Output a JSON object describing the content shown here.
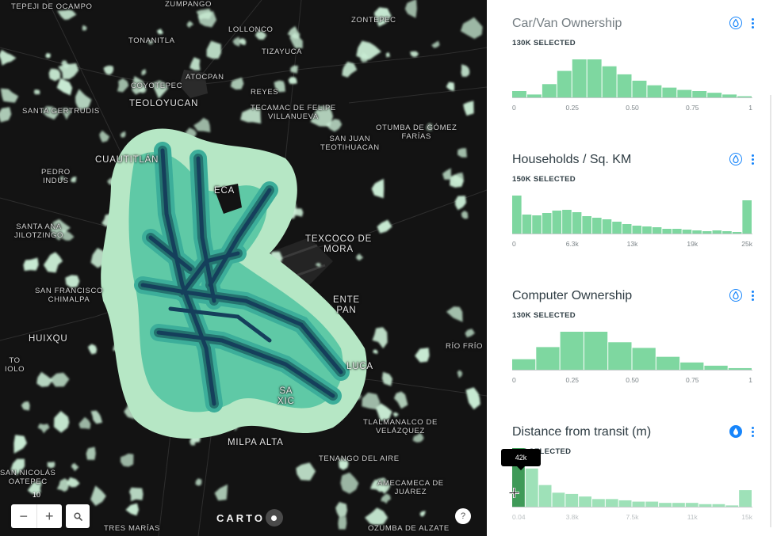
{
  "map": {
    "zoom_level": "10",
    "zoom_out_label": "−",
    "zoom_in_label": "+",
    "search_icon": "search-icon",
    "help_label": "?",
    "attribution": "CARTO",
    "places": [
      {
        "id": "tepeji",
        "text": "TEPEJI DE OCAMPO"
      },
      {
        "id": "zumpango",
        "text": "ZUMPANGO"
      },
      {
        "id": "tonanitla",
        "text": "TONANITLA"
      },
      {
        "id": "atocpan",
        "text": "ATOCPAN"
      },
      {
        "id": "zontepec",
        "text": "ZONTEPEC"
      },
      {
        "id": "lollonco",
        "text": "LOLLONCO"
      },
      {
        "id": "tizayuca",
        "text": "TIZAYUCA"
      },
      {
        "id": "coyotepec",
        "text": "COYOTEPEC"
      },
      {
        "id": "reyes",
        "text": "REYES"
      },
      {
        "id": "tecamac",
        "text": "TECAMAC DE FELIPE\nVILLANUEVA"
      },
      {
        "id": "teoloyucan",
        "text": "TEOLOYUCAN"
      },
      {
        "id": "gertrudis",
        "text": "SANTA GERTRUDIS"
      },
      {
        "id": "otumba",
        "text": "OTUMBA DE GÓMEZ\nFARÍAS"
      },
      {
        "id": "teotihuacan",
        "text": "SAN JUAN\nTEOTIHUACAN"
      },
      {
        "id": "cuautitlan",
        "text": "CUAUTITLÁN"
      },
      {
        "id": "pedro",
        "text": "PEDRO\nINDUS"
      },
      {
        "id": "ecatepec",
        "text": "ECA"
      },
      {
        "id": "jilotzingo",
        "text": "SANTA ANA\nJILOTZINGO"
      },
      {
        "id": "texcoco",
        "text": "TEXCOCO DE\nMORA"
      },
      {
        "id": "francisco",
        "text": "SAN FRANCISCO\nCHIMALPA"
      },
      {
        "id": "chimalhuacan",
        "text": "ENTE\nPAN"
      },
      {
        "id": "huixquilucan",
        "text": "HUIXQU"
      },
      {
        "id": "rio_frio",
        "text": "RÍO FRÍO"
      },
      {
        "id": "ixtapaluca",
        "text": "LUCA"
      },
      {
        "id": "tdolo",
        "text": "TO\nIOLO"
      },
      {
        "id": "santiago",
        "text": "SA\nXIC"
      },
      {
        "id": "milpa",
        "text": "MILPA ALTA"
      },
      {
        "id": "tlalmanalco",
        "text": "TLALMANALCO DE\nVELÁZQUEZ"
      },
      {
        "id": "tenango",
        "text": "TENANGO DEL AIRE"
      },
      {
        "id": "nicolas",
        "text": "SAN NICOLÁS\nOATEPEC"
      },
      {
        "id": "amecameca",
        "text": "AMECAMECA DE\nJUÁREZ"
      },
      {
        "id": "tres_marias",
        "text": "TRES MARÍAS"
      },
      {
        "id": "ozumba",
        "text": "OZUMBA DE ALZATE"
      }
    ]
  },
  "colors": {
    "bar": "#7ed7a0",
    "bar_selected": "#3f9a58",
    "accent": "#1785fb",
    "map_bg": "#131313"
  },
  "widgets": [
    {
      "id": "car",
      "title": "Car/Van Ownership",
      "selected": "130K SELECTED",
      "icon": "droplet-icon",
      "menu_icon": "more-vertical-icon",
      "chart_data": {
        "type": "bar",
        "xlabels": [
          "0",
          "0.25",
          "0.50",
          "0.75",
          "1"
        ],
        "xlim": [
          0,
          1
        ],
        "values": [
          11,
          5,
          23,
          46,
          66,
          66,
          54,
          40,
          29,
          21,
          17,
          13,
          11,
          8,
          5,
          2
        ]
      }
    },
    {
      "id": "households",
      "title": "Households / Sq. KM",
      "selected": "150K SELECTED",
      "icon": "droplet-icon",
      "menu_icon": "more-vertical-icon",
      "chart_data": {
        "type": "bar",
        "xlabels": [
          "0",
          "6.3k",
          "13k",
          "19k",
          "25k"
        ],
        "xlim": [
          0,
          25
        ],
        "values": [
          48,
          24,
          23,
          26,
          29,
          30,
          27,
          22,
          20,
          18,
          15,
          12,
          10,
          9,
          8,
          6,
          6,
          5,
          4,
          3,
          4,
          3,
          2,
          42
        ]
      }
    },
    {
      "id": "computer",
      "title": "Computer Ownership",
      "selected": "130K SELECTED",
      "icon": "droplet-icon",
      "menu_icon": "more-vertical-icon",
      "chart_data": {
        "type": "bar",
        "xlabels": [
          "0",
          "0.25",
          "0.50",
          "0.75",
          "1"
        ],
        "xlim": [
          0,
          1
        ],
        "values": [
          13,
          28,
          47,
          47,
          34,
          27,
          16,
          9,
          5,
          2
        ]
      }
    },
    {
      "id": "distance",
      "title": "Distance from transit (m)",
      "selected": "42K SELECTED",
      "icon": "droplet-icon",
      "menu_icon": "more-vertical-icon",
      "tooltip": "42k",
      "chart_data": {
        "type": "bar",
        "xlabels": [
          "0.04",
          "3.8k",
          "7.5k",
          "11k",
          "15k"
        ],
        "xlim": [
          0.04,
          15
        ],
        "selected_index": 0,
        "values": [
          46,
          30,
          17,
          11,
          10,
          8,
          6,
          6,
          5,
          4,
          4,
          3,
          3,
          3,
          2,
          2,
          1,
          13
        ]
      }
    }
  ]
}
